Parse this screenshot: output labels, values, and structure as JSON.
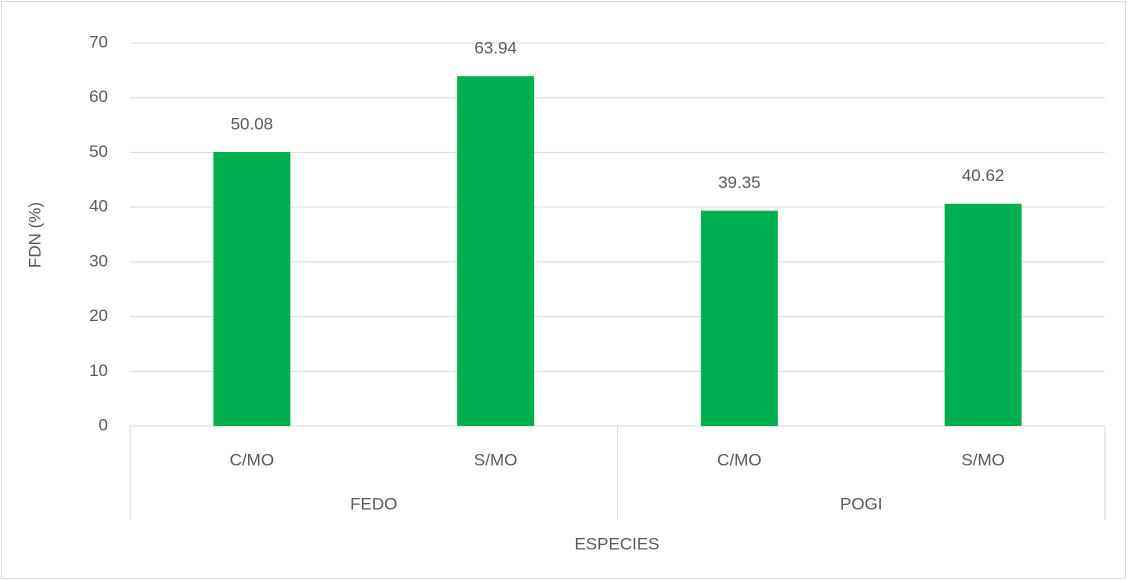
{
  "chart_data": {
    "type": "bar",
    "categories": [
      "C/MO",
      "S/MO",
      "C/MO",
      "S/MO"
    ],
    "groups": [
      "FEDO",
      "POGI"
    ],
    "values": [
      50.08,
      63.94,
      39.35,
      40.62
    ],
    "color": "#00b050",
    "xlabel": "ESPECIES",
    "ylabel": "FDN (%)",
    "ylim": [
      0,
      70
    ],
    "yticks": [
      0,
      10,
      20,
      30,
      40,
      50,
      60,
      70
    ],
    "grid": true
  }
}
